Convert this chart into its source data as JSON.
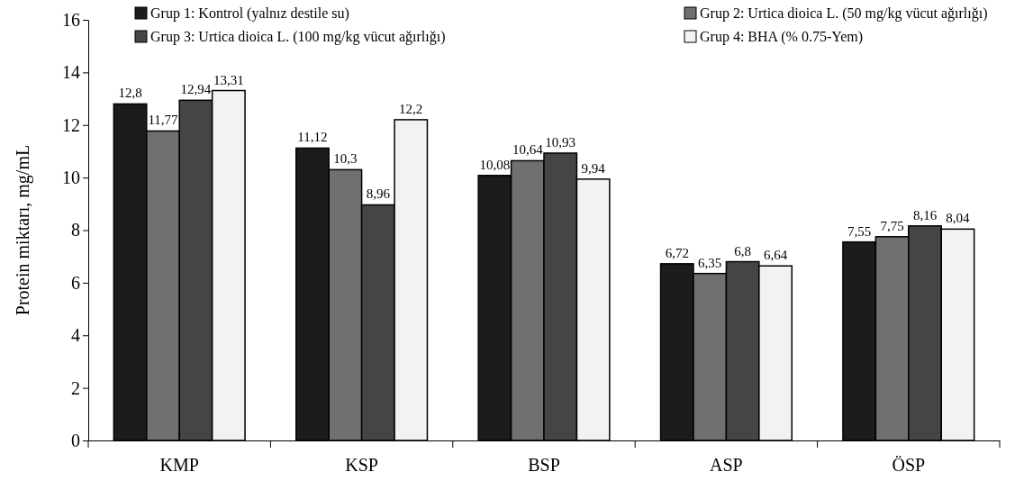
{
  "chart_data": {
    "type": "bar",
    "ylabel": "Protein miktarı, mg/mL",
    "categories": [
      "KMP",
      "KSP",
      "BSP",
      "ASP",
      "ÖSP"
    ],
    "series": [
      {
        "name": "Grup 1: Kontrol (yalnız destile su)",
        "color": "#1c1c1c",
        "values": [
          12.8,
          11.12,
          10.08,
          6.72,
          7.55
        ],
        "value_labels": [
          "12,8",
          "11,12",
          "10,08",
          "6,72",
          "7,55"
        ]
      },
      {
        "name": "Grup 2: Urtica dioica L. (50 mg/kg vücut ağırlığı)",
        "color": "#707070",
        "values": [
          11.77,
          10.3,
          10.64,
          6.35,
          7.75
        ],
        "value_labels": [
          "11,77",
          "10,3",
          "10,64",
          "6,35",
          "7,75"
        ]
      },
      {
        "name": "Grup 3: Urtica dioica L. (100 mg/kg vücut ağırlığı)",
        "color": "#454545",
        "values": [
          12.94,
          8.96,
          10.93,
          6.8,
          8.16
        ],
        "value_labels": [
          "12,94",
          "8,96",
          "10,93",
          "6,8",
          "8,16"
        ]
      },
      {
        "name": "Grup 4: BHA (% 0.75-Yem)",
        "color": "#f2f2f2",
        "values": [
          13.31,
          12.2,
          9.94,
          6.64,
          8.04
        ],
        "value_labels": [
          "13,31",
          "12,2",
          "9,94",
          "6,64",
          "8,04"
        ]
      }
    ],
    "ylim": [
      0,
      16
    ],
    "yticks": [
      0,
      2,
      4,
      6,
      8,
      10,
      12,
      14,
      16
    ],
    "grid": false,
    "legend": "top"
  }
}
